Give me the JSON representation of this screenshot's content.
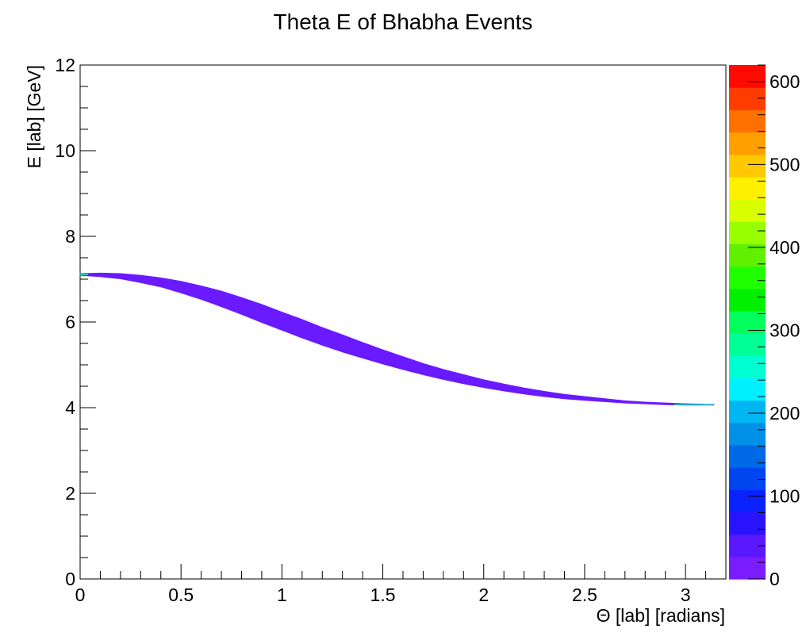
{
  "chart_data": {
    "type": "heatmap",
    "title": "Theta E of Bhabha Events",
    "xlabel": "Θ [lab] [radians]",
    "ylabel": "E [lab] [GeV]",
    "xlim": [
      0,
      3.2
    ],
    "ylim": [
      0,
      12
    ],
    "zlim": [
      0,
      620
    ],
    "x_ticks": [
      0,
      0.5,
      1,
      1.5,
      2,
      2.5,
      3
    ],
    "x_tick_labels": [
      "0",
      "0.5",
      "1",
      "1.5",
      "2",
      "2.5",
      "3"
    ],
    "y_ticks": [
      0,
      2,
      4,
      6,
      8,
      10,
      12
    ],
    "y_tick_labels": [
      "0",
      "2",
      "4",
      "6",
      "8",
      "10",
      "12"
    ],
    "z_ticks": [
      0,
      100,
      200,
      300,
      400,
      500,
      600
    ],
    "z_tick_labels": [
      "0",
      "100",
      "200",
      "300",
      "400",
      "500",
      "600"
    ],
    "grid": false,
    "band": {
      "description_of_shape_only": "kinematic E vs theta band",
      "points": [
        {
          "x": 0.0,
          "y_low": 7.09,
          "y_high": 7.13
        },
        {
          "x": 0.1,
          "y_low": 7.06,
          "y_high": 7.14
        },
        {
          "x": 0.2,
          "y_low": 7.01,
          "y_high": 7.13
        },
        {
          "x": 0.3,
          "y_low": 6.92,
          "y_high": 7.09
        },
        {
          "x": 0.4,
          "y_low": 6.82,
          "y_high": 7.03
        },
        {
          "x": 0.5,
          "y_low": 6.68,
          "y_high": 6.95
        },
        {
          "x": 0.6,
          "y_low": 6.53,
          "y_high": 6.84
        },
        {
          "x": 0.7,
          "y_low": 6.36,
          "y_high": 6.72
        },
        {
          "x": 0.8,
          "y_low": 6.18,
          "y_high": 6.57
        },
        {
          "x": 0.9,
          "y_low": 5.99,
          "y_high": 6.41
        },
        {
          "x": 1.0,
          "y_low": 5.81,
          "y_high": 6.23
        },
        {
          "x": 1.1,
          "y_low": 5.63,
          "y_high": 6.06
        },
        {
          "x": 1.2,
          "y_low": 5.46,
          "y_high": 5.87
        },
        {
          "x": 1.3,
          "y_low": 5.3,
          "y_high": 5.7
        },
        {
          "x": 1.4,
          "y_low": 5.16,
          "y_high": 5.52
        },
        {
          "x": 1.5,
          "y_low": 5.02,
          "y_high": 5.35
        },
        {
          "x": 1.6,
          "y_low": 4.89,
          "y_high": 5.19
        },
        {
          "x": 1.7,
          "y_low": 4.77,
          "y_high": 5.03
        },
        {
          "x": 1.8,
          "y_low": 4.66,
          "y_high": 4.89
        },
        {
          "x": 1.9,
          "y_low": 4.56,
          "y_high": 4.77
        },
        {
          "x": 2.0,
          "y_low": 4.47,
          "y_high": 4.65
        },
        {
          "x": 2.1,
          "y_low": 4.39,
          "y_high": 4.55
        },
        {
          "x": 2.2,
          "y_low": 4.32,
          "y_high": 4.46
        },
        {
          "x": 2.3,
          "y_low": 4.26,
          "y_high": 4.38
        },
        {
          "x": 2.4,
          "y_low": 4.21,
          "y_high": 4.31
        },
        {
          "x": 2.5,
          "y_low": 4.17,
          "y_high": 4.26
        },
        {
          "x": 2.6,
          "y_low": 4.14,
          "y_high": 4.21
        },
        {
          "x": 2.7,
          "y_low": 4.11,
          "y_high": 4.16
        },
        {
          "x": 2.8,
          "y_low": 4.09,
          "y_high": 4.13
        },
        {
          "x": 2.9,
          "y_low": 4.07,
          "y_high": 4.11
        },
        {
          "x": 3.0,
          "y_low": 4.06,
          "y_high": 4.09
        },
        {
          "x": 3.1,
          "y_low": 4.06,
          "y_high": 4.08
        },
        {
          "x": 3.14,
          "y_low": 4.06,
          "y_high": 4.08
        }
      ],
      "color": "#6a1aff",
      "endpoint_color": "#1ec8c8"
    },
    "palette": [
      "#7b1cff",
      "#5a18ff",
      "#2a14ff",
      "#0a22ff",
      "#0046f0",
      "#006ae6",
      "#0090e6",
      "#00b6f2",
      "#00f0ff",
      "#00ffd0",
      "#00ff96",
      "#00ff5a",
      "#00f000",
      "#20ff00",
      "#60f000",
      "#98ff00",
      "#d8ff00",
      "#fff000",
      "#ffc800",
      "#ffa000",
      "#ff7000",
      "#ff3c00",
      "#ff0a00"
    ]
  }
}
